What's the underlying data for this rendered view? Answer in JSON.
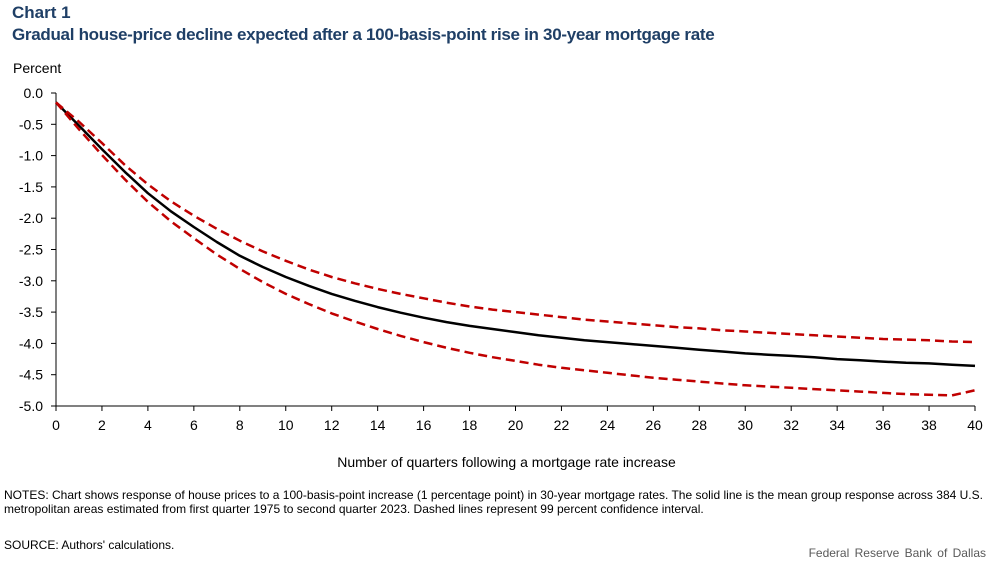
{
  "header": {
    "chart_label": "Chart 1",
    "title": "Gradual house-price decline expected after a 100-basis-point rise in 30-year mortgage rate"
  },
  "footer": {
    "notes": "NOTES: Chart shows response of house prices to a 100-basis-point increase (1 percentage point) in 30-year mortgage rates. The solid line is the mean group response across 384 U.S. metropolitan areas estimated from first quarter 1975 to second quarter 2023. Dashed lines represent 99 percent confidence interval.",
    "source": "SOURCE: Authors' calculations.",
    "credit": "Federal Reserve Bank of Dallas"
  },
  "colors": {
    "title": "#1f3f66",
    "mean_line": "#000000",
    "ci_lines": "#c00000"
  },
  "chart_data": {
    "type": "line",
    "title": "Gradual house-price decline expected after a 100-basis-point rise in 30-year mortgage rate",
    "xlabel": "Number of quarters following a mortgage rate increase",
    "ylabel": "Percent",
    "xlim": [
      0,
      40
    ],
    "ylim": [
      -5.0,
      0.0
    ],
    "x_ticks": [
      0,
      2,
      4,
      6,
      8,
      10,
      12,
      14,
      16,
      18,
      20,
      22,
      24,
      26,
      28,
      30,
      32,
      34,
      36,
      38,
      40
    ],
    "y_ticks": [
      0.0,
      -0.5,
      -1.0,
      -1.5,
      -2.0,
      -2.5,
      -3.0,
      -3.5,
      -4.0,
      -4.5,
      -5.0
    ],
    "y_tick_labels": [
      "0.0",
      "-0.5",
      "-1.0",
      "-1.5",
      "-2.0",
      "-2.5",
      "-3.0",
      "-3.5",
      "-4.0",
      "-4.5",
      "-5.0"
    ],
    "grid": false,
    "legend": "none",
    "x": [
      0,
      1,
      2,
      3,
      4,
      5,
      6,
      7,
      8,
      9,
      10,
      11,
      12,
      13,
      14,
      15,
      16,
      17,
      18,
      19,
      20,
      21,
      22,
      23,
      24,
      25,
      26,
      27,
      28,
      29,
      30,
      31,
      32,
      33,
      34,
      35,
      36,
      37,
      38,
      39,
      40
    ],
    "series": [
      {
        "style": "solid",
        "color": "#000000",
        "values": [
          -0.15,
          -0.52,
          -0.9,
          -1.26,
          -1.6,
          -1.89,
          -2.14,
          -2.38,
          -2.6,
          -2.78,
          -2.94,
          -3.08,
          -3.21,
          -3.32,
          -3.42,
          -3.51,
          -3.59,
          -3.66,
          -3.72,
          -3.77,
          -3.82,
          -3.87,
          -3.91,
          -3.95,
          -3.98,
          -4.01,
          -4.04,
          -4.07,
          -4.1,
          -4.13,
          -4.16,
          -4.18,
          -4.2,
          -4.22,
          -4.25,
          -4.27,
          -4.29,
          -4.31,
          -4.32,
          -4.34,
          -4.36
        ]
      },
      {
        "style": "dashed",
        "color": "#c00000",
        "values": [
          -0.15,
          -0.46,
          -0.8,
          -1.15,
          -1.46,
          -1.73,
          -1.96,
          -2.17,
          -2.36,
          -2.53,
          -2.68,
          -2.82,
          -2.94,
          -3.04,
          -3.13,
          -3.21,
          -3.28,
          -3.35,
          -3.41,
          -3.46,
          -3.5,
          -3.54,
          -3.58,
          -3.62,
          -3.65,
          -3.68,
          -3.71,
          -3.74,
          -3.76,
          -3.79,
          -3.81,
          -3.83,
          -3.85,
          -3.87,
          -3.89,
          -3.91,
          -3.93,
          -3.94,
          -3.95,
          -3.97,
          -3.98
        ]
      },
      {
        "style": "dashed",
        "color": "#c00000",
        "values": [
          -0.15,
          -0.58,
          -0.99,
          -1.38,
          -1.74,
          -2.05,
          -2.32,
          -2.58,
          -2.81,
          -3.02,
          -3.21,
          -3.37,
          -3.52,
          -3.65,
          -3.77,
          -3.88,
          -3.98,
          -4.07,
          -4.15,
          -4.22,
          -4.28,
          -4.34,
          -4.39,
          -4.43,
          -4.47,
          -4.51,
          -4.55,
          -4.58,
          -4.61,
          -4.64,
          -4.67,
          -4.69,
          -4.71,
          -4.73,
          -4.75,
          -4.77,
          -4.79,
          -4.81,
          -4.82,
          -4.83,
          -4.75
        ]
      }
    ]
  }
}
